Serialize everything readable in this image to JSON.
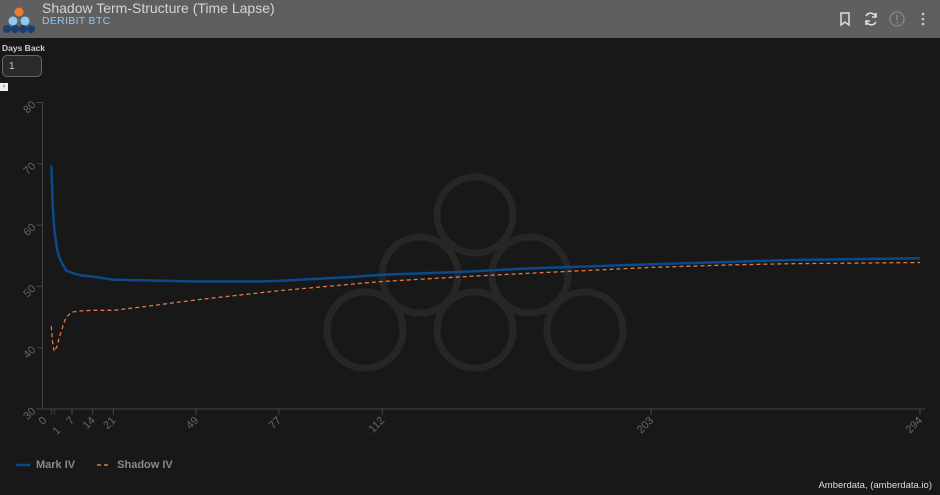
{
  "header": {
    "title": "Shadow Term-Structure (Time Lapse)",
    "subtitle": "DERIBIT BTC",
    "icons": [
      "bookmark-icon",
      "refresh-icon",
      "info-icon",
      "more-vert-icon"
    ]
  },
  "controls": {
    "days_back_label": "Days Back",
    "days_back_value": "1"
  },
  "colors": {
    "mark": "#0a4a8c",
    "shadow": "#e07a45",
    "header_bg": "#5f5f5f",
    "bg": "#181818"
  },
  "chart_data": {
    "type": "line",
    "title": "",
    "xlabel": "",
    "ylabel": "",
    "xlim": [
      0,
      294
    ],
    "ylim": [
      30,
      80
    ],
    "x_ticks": [
      0,
      1,
      7,
      14,
      21,
      49,
      77,
      112,
      203,
      294
    ],
    "y_ticks": [
      30,
      40,
      50,
      60,
      70,
      80
    ],
    "grid": false,
    "legend_position": "bottom-left",
    "series": [
      {
        "name": "Mark IV",
        "style": "solid",
        "x": [
          0,
          0.5,
          1,
          2,
          3,
          5,
          7,
          10,
          14,
          21,
          30,
          49,
          70,
          77,
          100,
          112,
          140,
          160,
          203,
          230,
          250,
          294
        ],
        "y": [
          69.7,
          63,
          59.2,
          56,
          54.3,
          52.6,
          52.2,
          51.8,
          51.6,
          51.1,
          51.0,
          50.8,
          50.8,
          50.9,
          51.5,
          51.9,
          52.4,
          52.9,
          53.6,
          54.0,
          54.3,
          54.6
        ]
      },
      {
        "name": "Shadow IV",
        "style": "dashed",
        "x": [
          0,
          0.5,
          1,
          2,
          3,
          5,
          7,
          10,
          14,
          21,
          30,
          49,
          77,
          100,
          112,
          140,
          160,
          203,
          230,
          250,
          294
        ],
        "y": [
          43.5,
          40.5,
          39.4,
          40.3,
          42.2,
          45.0,
          45.8,
          46.0,
          46.1,
          46.1,
          46.6,
          47.8,
          49.3,
          50.3,
          50.8,
          51.6,
          52.1,
          53.1,
          53.5,
          53.7,
          53.9
        ]
      }
    ]
  },
  "footer": {
    "credit": "Amberdata, (amberdata.io)"
  }
}
